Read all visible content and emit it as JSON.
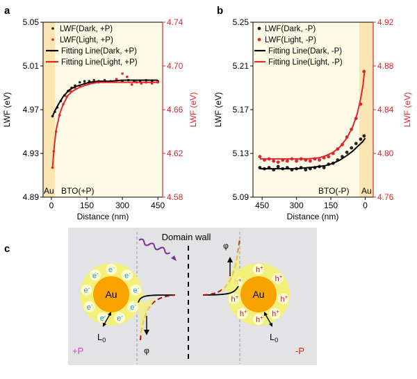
{
  "panel_labels": {
    "a": "a",
    "b": "b",
    "c": "c"
  },
  "colors": {
    "dark": "#222222",
    "light": "#e0262b",
    "bg": "#fffbe6",
    "au_band": "#fbe6b3",
    "schematic_bg": "#e3e2e5",
    "halo": "#f3f07a",
    "au": "#f8a300",
    "wave": "#7b2d9b",
    "pp": "#d63adb",
    "pn": "#d3221c",
    "electron": "#1d9bd8",
    "hole": "#c0143a"
  },
  "chart_data": [
    {
      "type": "scatter",
      "panel": "a",
      "xlabel": "Distance (nm)",
      "ylabel_left": "LWF (eV)",
      "ylabel_right": "LWF (eV)",
      "xlim": [
        -35,
        470
      ],
      "x_ticks": [
        "0",
        "150",
        "300",
        "450"
      ],
      "ylim_left": [
        4.89,
        5.05
      ],
      "y_ticks_left": [
        "4.89",
        "4.93",
        "4.97",
        "5.01",
        "5.05"
      ],
      "ylim_right": [
        4.58,
        4.74
      ],
      "y_ticks_right": [
        "4.58",
        "4.62",
        "4.66",
        "4.70",
        "4.74"
      ],
      "region_labels": [
        "Au",
        "BTO(+P)"
      ],
      "legend_position": "top-left",
      "series": [
        {
          "name": "LWF(Dark, +P)",
          "kind": "points",
          "axis": "left",
          "x": [
            5,
            15,
            25,
            40,
            55,
            70,
            85,
            100,
            120,
            140,
            160,
            180,
            200,
            225,
            250,
            275,
            300,
            325,
            350,
            375,
            400,
            425,
            450
          ],
          "y": [
            4.964,
            4.968,
            4.972,
            4.978,
            4.983,
            4.987,
            4.99,
            4.992,
            4.995,
            4.996,
            4.996,
            4.997,
            4.996,
            4.997,
            4.996,
            4.997,
            4.996,
            4.997,
            4.996,
            4.996,
            4.997,
            4.996,
            4.996
          ]
        },
        {
          "name": "LWF(Light, +P)",
          "kind": "points",
          "axis": "right",
          "x": [
            5,
            10,
            20,
            35,
            50,
            65,
            80,
            100,
            120,
            140,
            160,
            180,
            200,
            225,
            250,
            275,
            300,
            320,
            340,
            360,
            380,
            400,
            425,
            450
          ],
          "y": [
            4.607,
            4.622,
            4.64,
            4.655,
            4.665,
            4.672,
            4.677,
            4.68,
            4.682,
            4.684,
            4.684,
            4.686,
            4.685,
            4.686,
            4.686,
            4.688,
            4.693,
            4.69,
            4.683,
            4.685,
            4.684,
            4.685,
            4.684,
            4.685
          ]
        },
        {
          "name": "Fitting Line(Dark, +P)",
          "kind": "line",
          "axis": "left",
          "x": [
            5,
            15,
            30,
            50,
            75,
            100,
            130,
            160,
            200,
            250,
            300,
            350,
            400,
            450
          ],
          "y": [
            4.964,
            4.969,
            4.975,
            4.982,
            4.988,
            4.991,
            4.993,
            4.995,
            4.996,
            4.996,
            4.997,
            4.997,
            4.997,
            4.997
          ]
        },
        {
          "name": "Fitting Line(Light, +P)",
          "kind": "line",
          "axis": "right",
          "x": [
            5,
            12,
            20,
            35,
            50,
            70,
            90,
            115,
            140,
            170,
            200,
            250,
            300,
            350,
            400,
            450
          ],
          "y": [
            4.607,
            4.626,
            4.641,
            4.656,
            4.665,
            4.673,
            4.677,
            4.68,
            4.682,
            4.684,
            4.685,
            4.685,
            4.685,
            4.685,
            4.685,
            4.685
          ]
        }
      ]
    },
    {
      "type": "scatter",
      "panel": "b",
      "xlabel": "Distance (nm)",
      "ylabel_left": "LWF (eV)",
      "ylabel_right": "LWF (eV)",
      "xlim": [
        490,
        -35
      ],
      "x_ticks": [
        "450",
        "300",
        "150",
        "0"
      ],
      "ylim_left": [
        5.09,
        5.25
      ],
      "y_ticks_left": [
        "5.09",
        "5.13",
        "5.17",
        "5.21",
        "5.25"
      ],
      "ylim_right": [
        4.76,
        4.92
      ],
      "y_ticks_right": [
        "4.76",
        "4.80",
        "4.84",
        "4.88",
        "4.92"
      ],
      "region_labels": [
        "BTO(-P)",
        "Au"
      ],
      "legend_position": "top-left",
      "series": [
        {
          "name": "LWF(Dark, -P)",
          "kind": "points",
          "axis": "left",
          "x": [
            460,
            440,
            420,
            400,
            380,
            360,
            340,
            320,
            300,
            280,
            260,
            240,
            220,
            200,
            180,
            160,
            140,
            120,
            100,
            80,
            60,
            40,
            20,
            5
          ],
          "y": [
            5.117,
            5.116,
            5.117,
            5.115,
            5.118,
            5.116,
            5.117,
            5.115,
            5.116,
            5.117,
            5.115,
            5.116,
            5.117,
            5.118,
            5.117,
            5.12,
            5.121,
            5.124,
            5.127,
            5.131,
            5.135,
            5.139,
            5.143,
            5.146
          ]
        },
        {
          "name": "LWF(Light, -P)",
          "kind": "points",
          "axis": "right",
          "x": [
            460,
            440,
            420,
            400,
            380,
            360,
            340,
            320,
            300,
            280,
            260,
            240,
            220,
            200,
            180,
            160,
            140,
            120,
            100,
            80,
            60,
            40,
            20,
            5
          ],
          "y": [
            4.797,
            4.794,
            4.795,
            4.793,
            4.792,
            4.794,
            4.793,
            4.795,
            4.793,
            4.795,
            4.794,
            4.793,
            4.795,
            4.794,
            4.796,
            4.797,
            4.8,
            4.804,
            4.808,
            4.815,
            4.822,
            4.832,
            4.845,
            4.875
          ]
        },
        {
          "name": "Fitting Line(Dark, -P)",
          "kind": "line",
          "axis": "left",
          "x": [
            460,
            400,
            350,
            300,
            250,
            200,
            170,
            140,
            110,
            80,
            55,
            30,
            10,
            0
          ],
          "y": [
            5.116,
            5.116,
            5.116,
            5.116,
            5.117,
            5.118,
            5.119,
            5.121,
            5.124,
            5.128,
            5.132,
            5.137,
            5.141,
            5.144
          ]
        },
        {
          "name": "Fitting Line(Light, -P)",
          "kind": "line",
          "axis": "right",
          "x": [
            460,
            400,
            350,
            300,
            250,
            200,
            170,
            140,
            110,
            80,
            55,
            35,
            20,
            10,
            3
          ],
          "y": [
            4.795,
            4.795,
            4.795,
            4.795,
            4.795,
            4.796,
            4.798,
            4.801,
            4.806,
            4.814,
            4.824,
            4.836,
            4.85,
            4.862,
            4.875
          ]
        }
      ]
    }
  ],
  "schematic": {
    "title": "Domain wall",
    "left_center": "Au",
    "right_center": "Au",
    "electron": "e",
    "hole": "h",
    "charge_minus": "-",
    "charge_plus": "+",
    "phi": "φ",
    "l0_base": "L",
    "l0_sub": "0",
    "left_label": "+P",
    "right_label": "-P"
  }
}
